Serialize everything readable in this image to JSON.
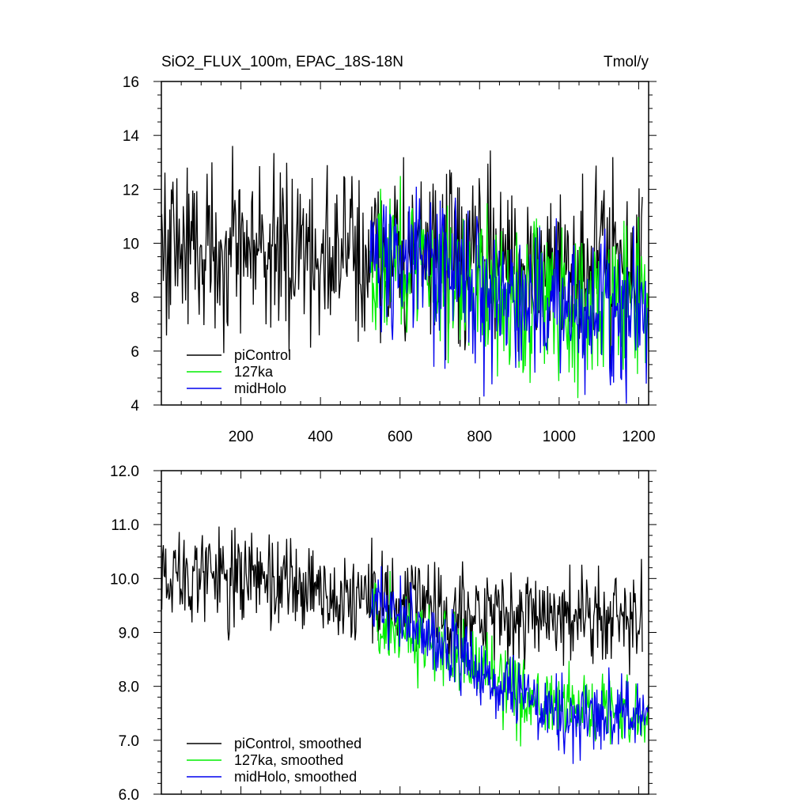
{
  "chart_data": [
    {
      "type": "line",
      "title": "SiO2_FLUX_100m, EPAC_18S-18N",
      "units": "Tmol/y",
      "xlim": [
        0,
        1225
      ],
      "ylim": [
        4,
        16
      ],
      "x_ticks": [
        200,
        400,
        600,
        800,
        1000,
        1200
      ],
      "y_ticks": [
        4,
        6,
        8,
        10,
        12,
        14,
        16
      ],
      "y_tick_labels": [
        "4",
        "6",
        "8",
        "10",
        "12",
        "14",
        "16"
      ],
      "legend_position": "bottom-left",
      "series": [
        {
          "name": "piControl",
          "color": "#000000",
          "x_start": 1,
          "x_end": 1210,
          "level_start": 10.0,
          "level_end": 9.3,
          "amplitude": 1.6
        },
        {
          "name": "127ka",
          "color": "#00ee00",
          "x_start": 525,
          "x_end": 1225,
          "level_start": 9.6,
          "level_end": 7.8,
          "amplitude": 1.4
        },
        {
          "name": "midHolo",
          "color": "#0000ee",
          "x_start": 525,
          "x_end": 1225,
          "level_start": 9.6,
          "level_end": 7.6,
          "amplitude": 1.4
        }
      ]
    },
    {
      "type": "line",
      "xlim": [
        0,
        1225
      ],
      "ylim": [
        6,
        12
      ],
      "x_ticks": [
        200,
        400,
        600,
        800,
        1000,
        1200
      ],
      "y_ticks": [
        6,
        7,
        8,
        9,
        10,
        11,
        12
      ],
      "y_tick_labels": [
        "6.0",
        "7.0",
        "8.0",
        "9.0",
        "10.0",
        "11.0",
        "12.0"
      ],
      "legend_position": "bottom-left",
      "series": [
        {
          "name": "piControl, smoothed",
          "color": "#000000",
          "x_start": 1,
          "x_end": 1210,
          "level_start": 10.2,
          "level_end": 9.3,
          "amplitude": 0.45
        },
        {
          "name": "127ka, smoothed",
          "color": "#00ee00",
          "x_start": 525,
          "x_end": 1225,
          "level_start": 9.4,
          "level_end": 7.6,
          "amplitude": 0.35
        },
        {
          "name": "midHolo, smoothed",
          "color": "#0000ee",
          "x_start": 525,
          "x_end": 1225,
          "level_start": 9.6,
          "level_end": 7.5,
          "amplitude": 0.35
        }
      ]
    }
  ]
}
